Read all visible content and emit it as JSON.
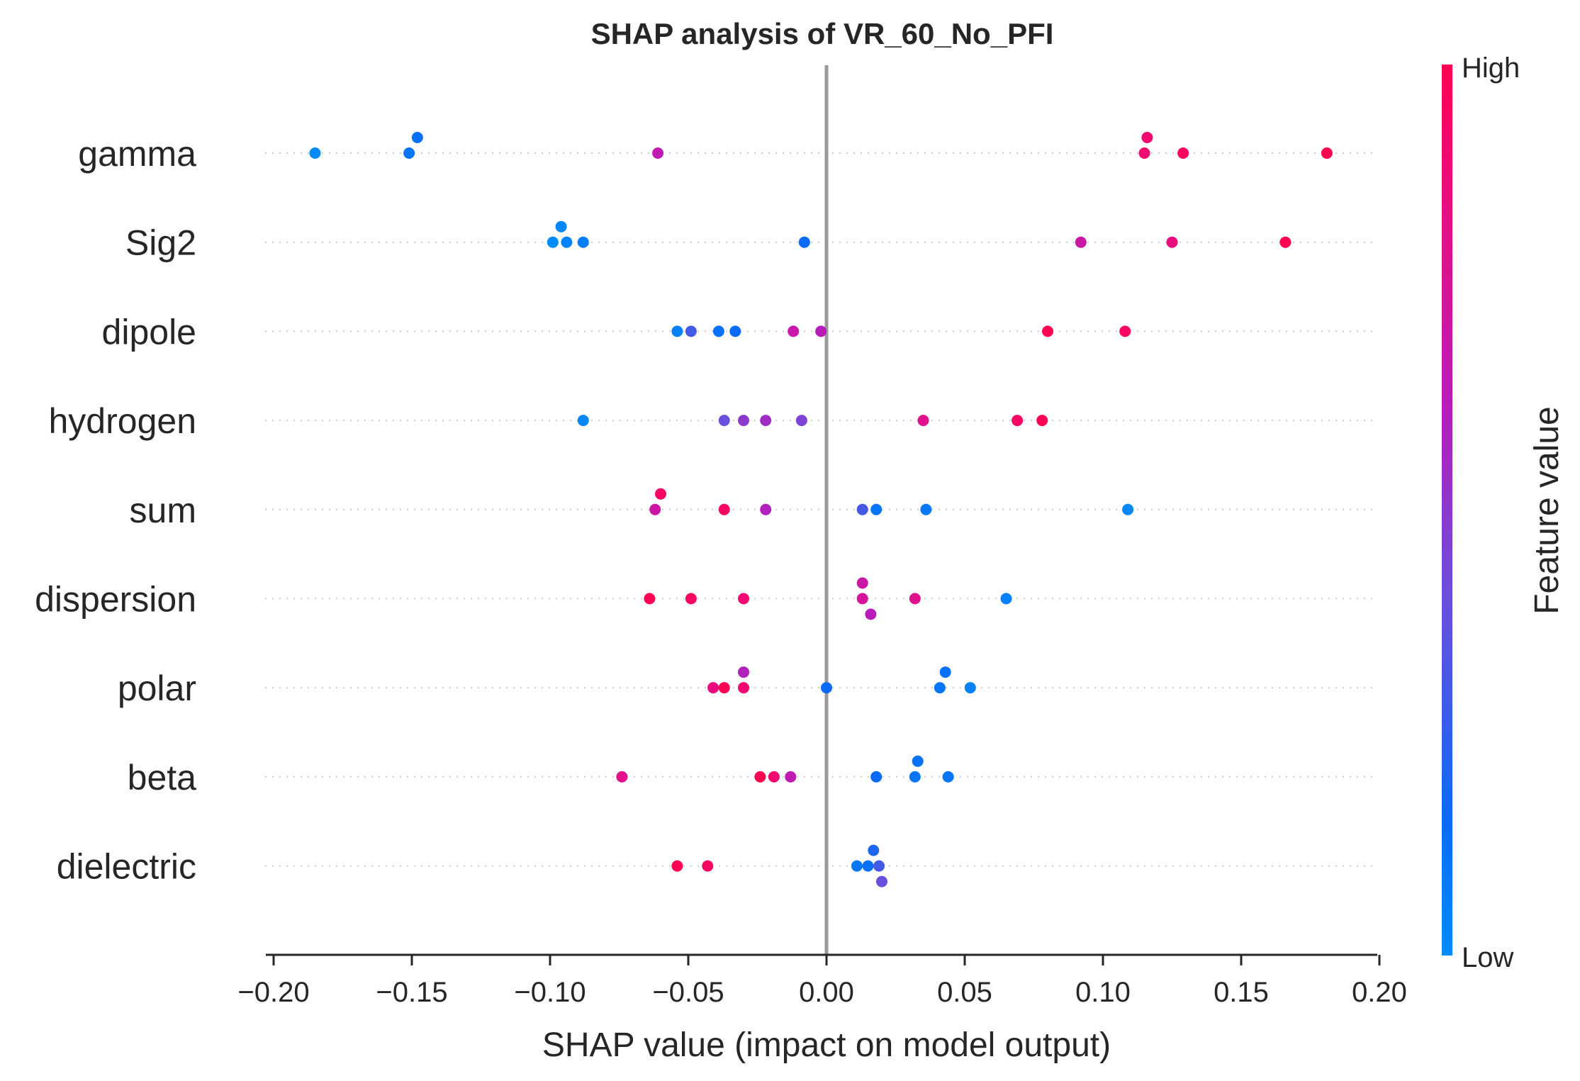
{
  "chart_data": {
    "type": "scatter",
    "title": "SHAP analysis of VR_60_No_PFI",
    "xlabel": "SHAP value (impact on model output)",
    "xlim": [
      -0.2,
      0.2
    ],
    "xticks": [
      -0.2,
      -0.15,
      -0.1,
      -0.05,
      0.0,
      0.05,
      0.1,
      0.15,
      0.2
    ],
    "xtick_labels": [
      "−0.20",
      "−0.15",
      "−0.10",
      "−0.05",
      "0.00",
      "0.05",
      "0.10",
      "0.15",
      "0.20"
    ],
    "colorbar": {
      "label": "Feature value",
      "high_label": "High",
      "low_label": "Low",
      "low_color": "#008bfb",
      "high_color": "#ff0052"
    },
    "reference_line": 0.0,
    "grid": false,
    "features": [
      {
        "name": "gamma",
        "points": [
          {
            "x": -0.185,
            "fv": 0.0
          },
          {
            "x": -0.151,
            "fv": 0.1
          },
          {
            "x": -0.148,
            "fv": 0.12
          },
          {
            "x": -0.061,
            "fv": 0.65
          },
          {
            "x": 0.115,
            "fv": 0.9
          },
          {
            "x": 0.116,
            "fv": 0.9
          },
          {
            "x": 0.129,
            "fv": 0.95
          },
          {
            "x": 0.181,
            "fv": 1.0
          }
        ]
      },
      {
        "name": "Sig2",
        "points": [
          {
            "x": -0.099,
            "fv": 0.0
          },
          {
            "x": -0.096,
            "fv": 0.02
          },
          {
            "x": -0.094,
            "fv": 0.04
          },
          {
            "x": -0.088,
            "fv": 0.06
          },
          {
            "x": -0.008,
            "fv": 0.15
          },
          {
            "x": 0.092,
            "fv": 0.7
          },
          {
            "x": 0.125,
            "fv": 0.85
          },
          {
            "x": 0.166,
            "fv": 1.0
          }
        ]
      },
      {
        "name": "dipole",
        "points": [
          {
            "x": -0.054,
            "fv": 0.05
          },
          {
            "x": -0.049,
            "fv": 0.3
          },
          {
            "x": -0.039,
            "fv": 0.12
          },
          {
            "x": -0.033,
            "fv": 0.15
          },
          {
            "x": -0.012,
            "fv": 0.68
          },
          {
            "x": -0.002,
            "fv": 0.62
          },
          {
            "x": 0.08,
            "fv": 1.0
          },
          {
            "x": 0.108,
            "fv": 0.95
          }
        ]
      },
      {
        "name": "hydrogen",
        "points": [
          {
            "x": -0.088,
            "fv": 0.02
          },
          {
            "x": -0.037,
            "fv": 0.4
          },
          {
            "x": -0.03,
            "fv": 0.5
          },
          {
            "x": -0.022,
            "fv": 0.55
          },
          {
            "x": -0.009,
            "fv": 0.45
          },
          {
            "x": 0.035,
            "fv": 0.8
          },
          {
            "x": 0.069,
            "fv": 0.95
          },
          {
            "x": 0.078,
            "fv": 1.0
          }
        ]
      },
      {
        "name": "sum",
        "points": [
          {
            "x": -0.062,
            "fv": 0.7
          },
          {
            "x": -0.06,
            "fv": 0.95
          },
          {
            "x": -0.037,
            "fv": 0.95
          },
          {
            "x": -0.022,
            "fv": 0.6
          },
          {
            "x": 0.013,
            "fv": 0.3
          },
          {
            "x": 0.018,
            "fv": 0.1
          },
          {
            "x": 0.036,
            "fv": 0.08
          },
          {
            "x": 0.109,
            "fv": 0.02
          }
        ]
      },
      {
        "name": "dispersion",
        "points": [
          {
            "x": -0.064,
            "fv": 1.0
          },
          {
            "x": -0.049,
            "fv": 0.95
          },
          {
            "x": -0.03,
            "fv": 0.9
          },
          {
            "x": 0.013,
            "fv": 0.75
          },
          {
            "x": 0.013,
            "fv": 0.7
          },
          {
            "x": 0.016,
            "fv": 0.62
          },
          {
            "x": 0.032,
            "fv": 0.8
          },
          {
            "x": 0.065,
            "fv": 0.05
          }
        ]
      },
      {
        "name": "polar",
        "points": [
          {
            "x": -0.041,
            "fv": 0.85
          },
          {
            "x": -0.037,
            "fv": 1.0
          },
          {
            "x": -0.03,
            "fv": 0.9
          },
          {
            "x": -0.03,
            "fv": 0.6
          },
          {
            "x": 0.0,
            "fv": 0.15
          },
          {
            "x": 0.041,
            "fv": 0.1
          },
          {
            "x": 0.043,
            "fv": 0.12
          },
          {
            "x": 0.052,
            "fv": 0.05
          }
        ]
      },
      {
        "name": "beta",
        "points": [
          {
            "x": -0.074,
            "fv": 0.8
          },
          {
            "x": -0.024,
            "fv": 1.0
          },
          {
            "x": -0.019,
            "fv": 0.9
          },
          {
            "x": -0.013,
            "fv": 0.65
          },
          {
            "x": 0.018,
            "fv": 0.15
          },
          {
            "x": 0.032,
            "fv": 0.1
          },
          {
            "x": 0.033,
            "fv": 0.12
          },
          {
            "x": 0.044,
            "fv": 0.1
          }
        ]
      },
      {
        "name": "dielectric",
        "points": [
          {
            "x": -0.054,
            "fv": 1.0
          },
          {
            "x": -0.043,
            "fv": 0.95
          },
          {
            "x": 0.011,
            "fv": 0.1
          },
          {
            "x": 0.015,
            "fv": 0.12
          },
          {
            "x": 0.017,
            "fv": 0.2
          },
          {
            "x": 0.019,
            "fv": 0.3
          },
          {
            "x": 0.02,
            "fv": 0.4
          }
        ]
      }
    ]
  }
}
